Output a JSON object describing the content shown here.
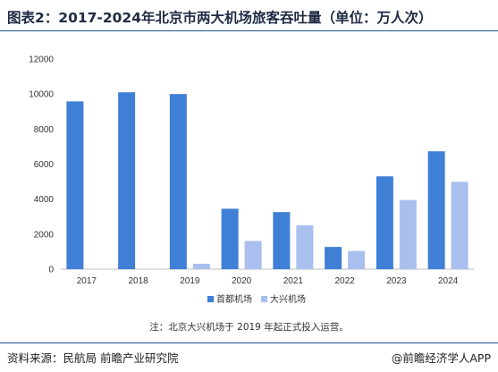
{
  "title": "图表2：2017-2024年北京市两大机场旅客吞吐量（单位：万人次）",
  "note": "注：北京大兴机场于 2019 年起正式投入运营。",
  "source": "资料来源：民航局  前瞻产业研究院",
  "brand": "@前瞻经济学人APP",
  "colors": {
    "series_1": "#3f7fd6",
    "series_2": "#a9bfee",
    "divider": "#1f4e8c"
  },
  "chart_data": {
    "type": "bar",
    "categories": [
      "2017",
      "2018",
      "2019",
      "2020",
      "2021",
      "2022",
      "2023",
      "2024"
    ],
    "series": [
      {
        "name": "首都机场",
        "values": [
          9580,
          10100,
          10000,
          3450,
          3260,
          1270,
          5300,
          6730
        ]
      },
      {
        "name": "大兴机场",
        "values": [
          null,
          null,
          310,
          1610,
          2510,
          1040,
          3950,
          4990
        ]
      }
    ],
    "yticks": [
      0,
      2000,
      4000,
      6000,
      8000,
      10000,
      12000
    ],
    "ylim": [
      0,
      12000
    ],
    "legend_position": "bottom",
    "grid": false
  }
}
